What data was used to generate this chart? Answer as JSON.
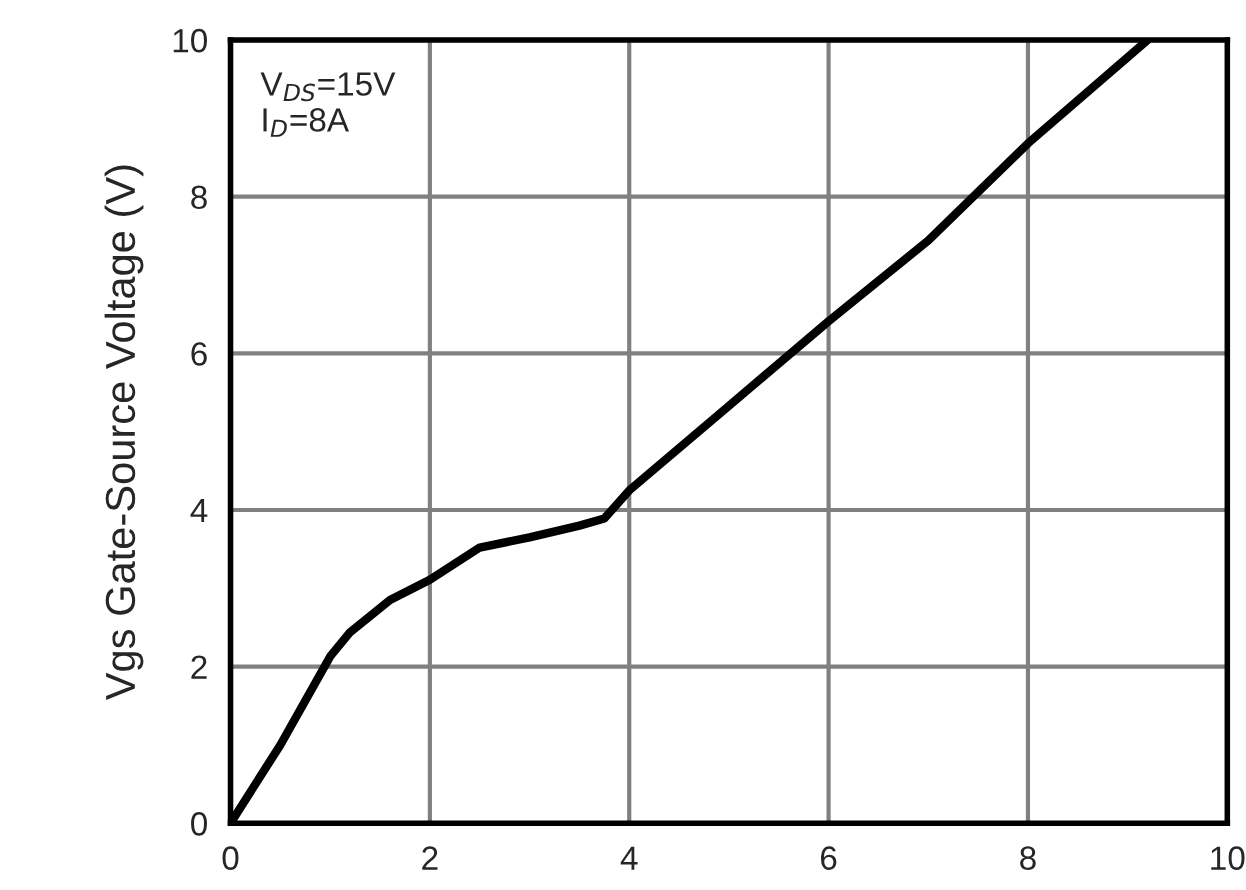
{
  "chart_data": {
    "type": "line",
    "ylabel": "Vgs Gate-Source Voltage (V)",
    "x": [
      0,
      0.5,
      1,
      1.2,
      1.6,
      2,
      2.5,
      3,
      3.5,
      3.75,
      4,
      5,
      6,
      7,
      8,
      9.2
    ],
    "series": [
      {
        "color": "#000000",
        "values": [
          0,
          1.0,
          2.13,
          2.44,
          2.85,
          3.11,
          3.52,
          3.65,
          3.8,
          3.89,
          4.25,
          5.33,
          6.41,
          7.44,
          8.68,
          10
        ]
      }
    ],
    "xlim": [
      0,
      10
    ],
    "xticks": [
      0,
      2,
      4,
      6,
      8,
      10
    ],
    "ylim": [
      0,
      10
    ],
    "yticks": [
      0,
      2,
      4,
      6,
      8,
      10
    ],
    "grid": true,
    "marker": "none",
    "line_style": "solid",
    "annotations": [
      "V$_{DS}$=15V",
      "I$_{D}$=8A"
    ]
  }
}
